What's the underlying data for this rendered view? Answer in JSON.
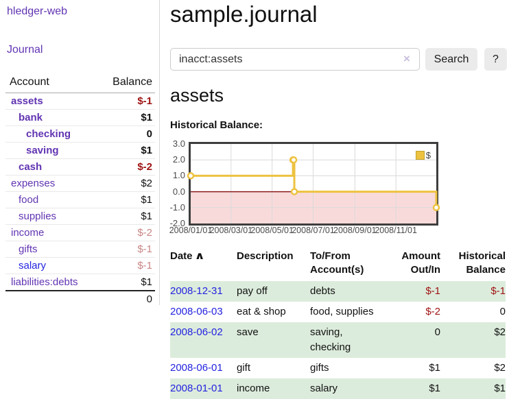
{
  "sidebar": {
    "app_title": "hledger-web",
    "nav_journal": "Journal",
    "accounts": {
      "col_account": "Account",
      "col_balance": "Balance",
      "rows": [
        {
          "name": "assets",
          "depth": 1,
          "emphasis": true,
          "link_style": "visited",
          "balance": "$-1",
          "balance_style": "neg-strong"
        },
        {
          "name": "bank",
          "depth": 2,
          "emphasis": true,
          "link_style": "visited",
          "balance": "$1",
          "balance_style": "pos-strong"
        },
        {
          "name": "checking",
          "depth": 3,
          "emphasis": true,
          "link_style": "visited",
          "balance": "0",
          "balance_style": "pos-strong"
        },
        {
          "name": "saving",
          "depth": 3,
          "emphasis": true,
          "link_style": "visited",
          "balance": "$1",
          "balance_style": "pos-strong"
        },
        {
          "name": "cash",
          "depth": 2,
          "emphasis": true,
          "link_style": "visited",
          "balance": "$-2",
          "balance_style": "neg-strong"
        },
        {
          "name": "expenses",
          "depth": 1,
          "emphasis": false,
          "link_style": "visited",
          "balance": "$2",
          "balance_style": "pos"
        },
        {
          "name": "food",
          "depth": 2,
          "emphasis": false,
          "link_style": "visited",
          "balance": "$1",
          "balance_style": "pos"
        },
        {
          "name": "supplies",
          "depth": 2,
          "emphasis": false,
          "link_style": "visited",
          "balance": "$1",
          "balance_style": "pos"
        },
        {
          "name": "income",
          "depth": 1,
          "emphasis": false,
          "link_style": "visited",
          "balance": "$-2",
          "balance_style": "neg-muted"
        },
        {
          "name": "gifts",
          "depth": 2,
          "emphasis": false,
          "link_style": "visited",
          "balance": "$-1",
          "balance_style": "neg-muted"
        },
        {
          "name": "salary",
          "depth": 2,
          "emphasis": false,
          "link_style": "unvisited",
          "balance": "$-1",
          "balance_style": "neg-muted"
        },
        {
          "name": "liabilities:debts",
          "depth": 1,
          "emphasis": false,
          "link_style": "visited",
          "balance": "$1",
          "balance_style": "pos"
        }
      ],
      "total": "0"
    }
  },
  "main": {
    "title": "sample.journal",
    "search": {
      "value": "inacct:assets",
      "clear": "×",
      "button": "Search",
      "help": "?"
    },
    "account_heading": "assets",
    "section_label": "Historical Balance:"
  },
  "chart_data": {
    "type": "line",
    "title": "Historical Balance",
    "step": true,
    "ylim": [
      -2,
      3
    ],
    "x_range_days": 365,
    "y_ticks": [
      "3.0",
      "2.0",
      "1.0",
      "0.0",
      "-1.0",
      "-2.0"
    ],
    "x_ticks": [
      {
        "label": "2008/01/01",
        "day": 0
      },
      {
        "label": "2008/03/01",
        "day": 60
      },
      {
        "label": "2008/05/01",
        "day": 121
      },
      {
        "label": "2008/07/01",
        "day": 182
      },
      {
        "label": "2008/09/01",
        "day": 244
      },
      {
        "label": "2008/11/01",
        "day": 305
      }
    ],
    "series": [
      {
        "name": "$",
        "color": "#edc240",
        "points": [
          {
            "date": "2008-01-01",
            "day": 0,
            "value": 1
          },
          {
            "date": "2008-06-01",
            "day": 152,
            "value": 2
          },
          {
            "date": "2008-06-02",
            "day": 153,
            "value": 2
          },
          {
            "date": "2008-06-03",
            "day": 154,
            "value": 0
          },
          {
            "date": "2008-12-31",
            "day": 365,
            "value": -1
          }
        ]
      }
    ],
    "legend": {
      "label": "$",
      "color": "#edc240",
      "position": "top-right"
    },
    "grid": true,
    "negative_region_color": "#f9dada",
    "zero_line_color": "#8b1a1a"
  },
  "register": {
    "sort_indicator": "∧",
    "headers": {
      "date": "Date",
      "description": "Description",
      "accounts": "To/From Account(s)",
      "amount": "Amount Out/In",
      "balance": "Historical Balance"
    },
    "rows": [
      {
        "date": "2008-12-31",
        "description": "pay off",
        "accounts": "debts",
        "amount": "$-1",
        "amount_neg": true,
        "balance": "$-1",
        "balance_neg": true
      },
      {
        "date": "2008-06-03",
        "description": "eat & shop",
        "accounts": "food, supplies",
        "amount": "$-2",
        "amount_neg": true,
        "balance": "0",
        "balance_neg": false
      },
      {
        "date": "2008-06-02",
        "description": "save",
        "accounts": "saving, checking",
        "amount": "0",
        "amount_neg": false,
        "balance": "$2",
        "balance_neg": false
      },
      {
        "date": "2008-06-01",
        "description": "gift",
        "accounts": "gifts",
        "amount": "$1",
        "amount_neg": false,
        "balance": "$2",
        "balance_neg": false
      },
      {
        "date": "2008-01-01",
        "description": "income",
        "accounts": "salary",
        "amount": "$1",
        "amount_neg": false,
        "balance": "$1",
        "balance_neg": false
      }
    ]
  },
  "colors": {
    "link_purple": "#6134b2",
    "link_blue": "#2323e0",
    "negative_red": "#9e1212",
    "muted_red": "#c98585",
    "row_stripe_green": "#dcecdc",
    "series_yellow": "#edc240"
  }
}
